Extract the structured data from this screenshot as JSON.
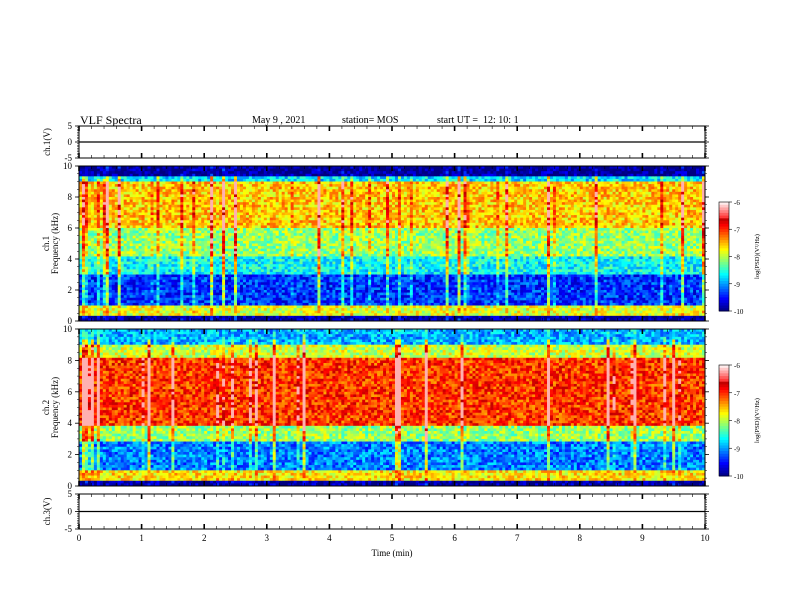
{
  "header": {
    "title": "VLF Spectra",
    "date": "May 9 , 2021",
    "station": "station= MOS",
    "start": "start UT =  12: 10: 1"
  },
  "chart_data": [
    {
      "type": "line",
      "panel": "ch1-waveform",
      "ylabel": "ch.1(V)",
      "ylim": [
        -5,
        5
      ],
      "yticks": [
        5,
        0,
        -5
      ],
      "xlim": [
        0,
        10
      ],
      "trace_level": 0
    },
    {
      "type": "heatmap",
      "panel": "ch1-spectrogram",
      "ylabel": "ch.1 Frequency (kHz)",
      "ylim": [
        0,
        10
      ],
      "yticks": [
        0,
        2,
        4,
        6,
        8,
        10
      ],
      "xlim": [
        0,
        10
      ],
      "colorbar": {
        "label": "log(PSD)(V²/Hz)",
        "ticks": [
          -6,
          -7,
          -8,
          -9,
          -10
        ],
        "range": [
          -10,
          -6
        ]
      },
      "bands": [
        {
          "from": 0.0,
          "to": 0.4,
          "level": -9.9
        },
        {
          "from": 0.4,
          "to": 1.0,
          "level": -7.6
        },
        {
          "from": 1.0,
          "to": 3.0,
          "level": -9.3
        },
        {
          "from": 3.0,
          "to": 4.2,
          "level": -8.5
        },
        {
          "from": 4.2,
          "to": 6.0,
          "level": -7.9
        },
        {
          "from": 6.0,
          "to": 9.0,
          "level": -7.3
        },
        {
          "from": 9.0,
          "to": 9.4,
          "level": -8.6
        },
        {
          "from": 9.4,
          "to": 10.0,
          "level": -9.95
        }
      ]
    },
    {
      "type": "heatmap",
      "panel": "ch2-spectrogram",
      "ylabel": "ch.2 Frequency (kHz)",
      "ylim": [
        0,
        10
      ],
      "yticks": [
        0,
        2,
        4,
        6,
        8,
        10
      ],
      "xlim": [
        0,
        10
      ],
      "colorbar": {
        "label": "log(PSD)(V²/Hz)",
        "ticks": [
          -6,
          -7,
          -8,
          -9,
          -10
        ],
        "range": [
          -10,
          -6
        ]
      },
      "bands": [
        {
          "from": 0.0,
          "to": 0.4,
          "level": -9.9
        },
        {
          "from": 0.4,
          "to": 1.0,
          "level": -7.4
        },
        {
          "from": 1.0,
          "to": 2.8,
          "level": -9.0
        },
        {
          "from": 2.8,
          "to": 3.8,
          "level": -7.9
        },
        {
          "from": 3.8,
          "to": 8.2,
          "level": -6.7
        },
        {
          "from": 8.2,
          "to": 9.0,
          "level": -7.7
        },
        {
          "from": 9.0,
          "to": 10.0,
          "level": -8.8
        }
      ]
    },
    {
      "type": "line",
      "panel": "ch3-waveform",
      "ylabel": "ch.3(V)",
      "ylim": [
        -5,
        5
      ],
      "yticks": [
        5,
        0,
        -5
      ],
      "xlim": [
        0,
        10
      ],
      "trace_level": 0
    }
  ],
  "x_axis": {
    "label": "Time (min)",
    "ticks": [
      0,
      1,
      2,
      3,
      4,
      5,
      6,
      7,
      8,
      9,
      10
    ]
  }
}
